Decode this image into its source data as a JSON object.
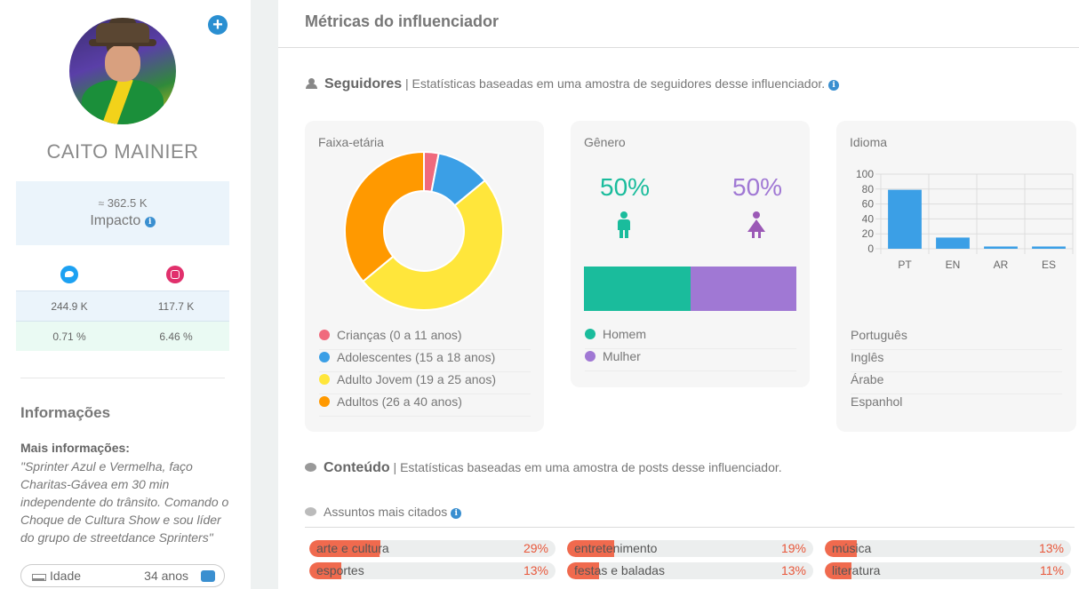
{
  "profile": {
    "name": "CAITO MAINIER",
    "impact_value": "362.5 K",
    "impact_label": "Impacto",
    "twitter_followers": "244.9 K",
    "instagram_followers": "117.7 K",
    "twitter_engagement": "0.71 %",
    "instagram_engagement": "6.46 %",
    "info_title": "Informações",
    "more_info_label": "Mais informações:",
    "bio": "\"Sprinter Azul e Vermelha, faço Charitas-Gávea em 30 min independente do trânsito. Comando o Choque de Cultura Show e sou líder do grupo de streetdance Sprinters\"",
    "age_label": "Idade",
    "age_value": "34 anos"
  },
  "main": {
    "title": "Métricas do influenciador",
    "followers_section": {
      "heading": "Seguidores",
      "description": "| Estatísticas baseadas em uma amostra de seguidores desse influenciador."
    },
    "age_card": {
      "title": "Faixa-etária",
      "legend": [
        {
          "label": "Crianças (0 a 11 anos)",
          "color": "#f06a7d"
        },
        {
          "label": "Adolescentes (15 a 18 anos)",
          "color": "#3b9fe6"
        },
        {
          "label": "Adulto Jovem (19 a 25 anos)",
          "color": "#ffe63b"
        },
        {
          "label": "Adultos (26 a 40 anos)",
          "color": "#ff9900"
        }
      ]
    },
    "gender_card": {
      "title": "Gênero",
      "male_pct": "50%",
      "female_pct": "50%",
      "male_color": "#1abc9c",
      "female_color": "#a078d4",
      "male_share": 50,
      "female_share": 50,
      "legend": [
        {
          "label": "Homem",
          "color": "#1abc9c"
        },
        {
          "label": "Mulher",
          "color": "#a078d4"
        }
      ]
    },
    "language_card": {
      "title": "Idioma",
      "languages": [
        "Português",
        "Inglês",
        "Árabe",
        "Espanhol"
      ]
    },
    "content_section": {
      "heading": "Conteúdo",
      "description": "| Estatísticas baseadas em uma amostra de posts desse influenciador."
    },
    "topics_subtitle": "Assuntos mais citados",
    "topics": [
      {
        "name": "arte e cultura",
        "pct": "29%",
        "share": 29
      },
      {
        "name": "entretenimento",
        "pct": "19%",
        "share": 19
      },
      {
        "name": "música",
        "pct": "13%",
        "share": 13
      },
      {
        "name": "esportes",
        "pct": "13%",
        "share": 13
      },
      {
        "name": "festas e baladas",
        "pct": "13%",
        "share": 13
      },
      {
        "name": "literatura",
        "pct": "11%",
        "share": 11
      }
    ]
  },
  "chart_data": [
    {
      "type": "pie",
      "title": "Faixa-etária",
      "categories": [
        "Crianças (0 a 11 anos)",
        "Adolescentes (15 a 18 anos)",
        "Adulto Jovem (19 a 25 anos)",
        "Adultos (26 a 40 anos)"
      ],
      "values": [
        3,
        11,
        50,
        36
      ],
      "colors": [
        "#f06a7d",
        "#3b9fe6",
        "#ffe63b",
        "#ff9900"
      ]
    },
    {
      "type": "bar",
      "title": "Idioma",
      "categories": [
        "PT",
        "EN",
        "AR",
        "ES"
      ],
      "values": [
        79,
        15,
        3,
        3
      ],
      "ylim": [
        0,
        100
      ],
      "yticks": [
        0,
        20,
        40,
        60,
        80,
        100
      ],
      "grid": true,
      "color": "#3b9fe6"
    }
  ]
}
